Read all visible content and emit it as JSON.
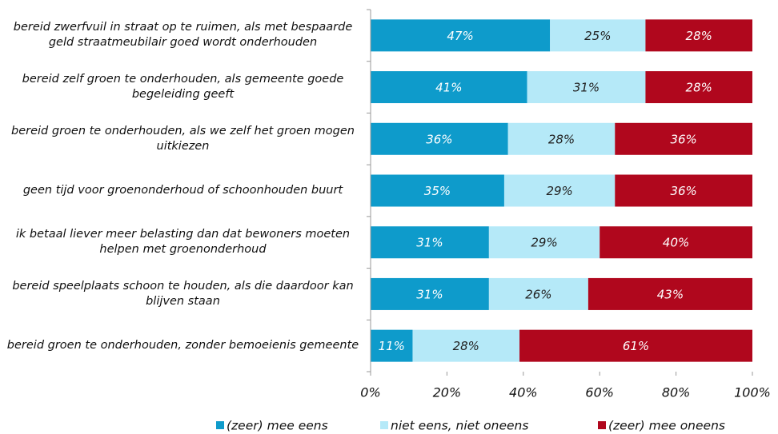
{
  "chart_data": {
    "type": "stacked-barh",
    "categories": [
      "bereid zwerfvuil in straat op te ruimen, als met bespaarde geld straatmeubilair goed wordt onderhouden",
      "bereid zelf groen te onderhouden, als gemeente goede begeleiding geeft",
      "bereid groen te onderhouden, als we zelf het groen mogen uitkiezen",
      "geen tijd voor groenonderhoud of schoonhouden buurt",
      "ik betaal liever meer belasting dan dat bewoners moeten helpen met groenonderhoud",
      "bereid speelplaats schoon te houden, als die daardoor kan blijven staan",
      "bereid groen te onderhouden, zonder bemoeienis gemeente"
    ],
    "series": [
      {
        "name": "(zeer) mee eens",
        "color": "#0e9bcb",
        "text_color": "#ffffff",
        "values": [
          47,
          41,
          36,
          35,
          31,
          31,
          11
        ],
        "value_labels": [
          "47%",
          "41%",
          "36%",
          "35%",
          "31%",
          "31%",
          "11%"
        ]
      },
      {
        "name": "niet eens, niet oneens",
        "color": "#b5e9f8",
        "text_color": "#222222",
        "values": [
          25,
          31,
          28,
          29,
          29,
          26,
          28
        ],
        "value_labels": [
          "25%",
          "31%",
          "28%",
          "29%",
          "29%",
          "26%",
          "28%"
        ]
      },
      {
        "name": "(zeer) mee oneens",
        "color": "#b0071d",
        "text_color": "#ffffff",
        "values": [
          28,
          28,
          36,
          36,
          40,
          43,
          61
        ],
        "value_labels": [
          "28%",
          "28%",
          "36%",
          "36%",
          "40%",
          "43%",
          "61%"
        ]
      }
    ],
    "xlim": [
      0,
      100
    ],
    "xticks": [
      {
        "value": 0,
        "label": "0%"
      },
      {
        "value": 20,
        "label": "20%"
      },
      {
        "value": 40,
        "label": "40%"
      },
      {
        "value": 60,
        "label": "60%"
      },
      {
        "value": 80,
        "label": "80%"
      },
      {
        "value": 100,
        "label": "100%"
      }
    ],
    "legend": "bottom"
  }
}
